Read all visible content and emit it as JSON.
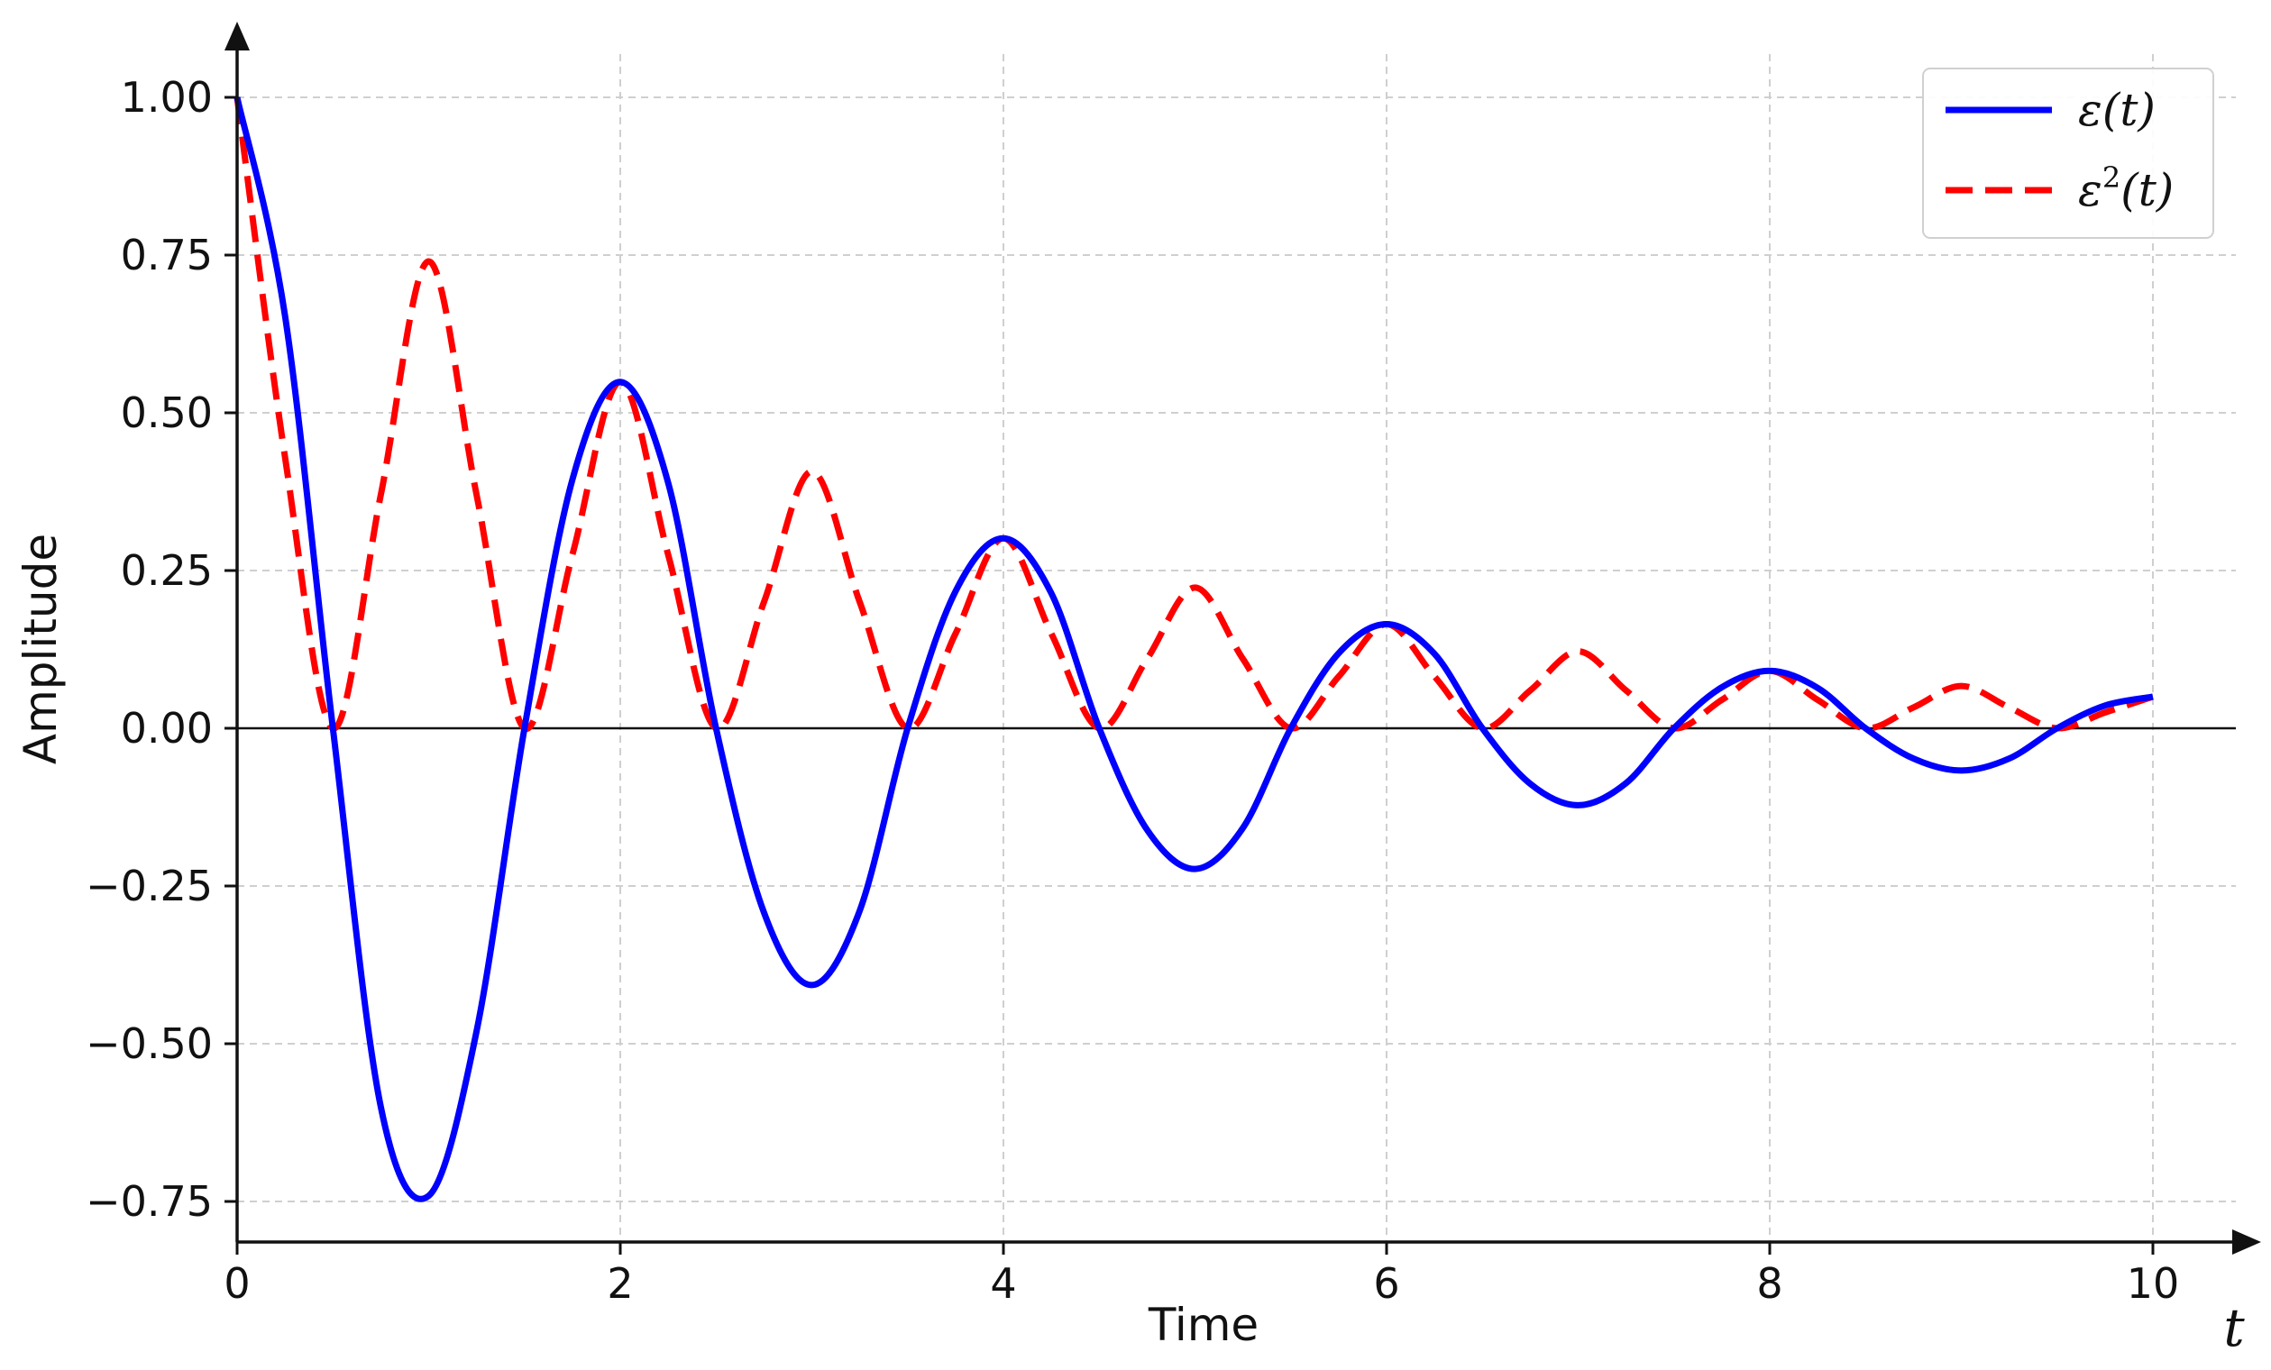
{
  "chart_data": {
    "type": "line",
    "xlabel": "Time",
    "ylabel": "Amplitude",
    "x_axis_symbol": "t",
    "xlim": [
      0,
      10
    ],
    "ylim": [
      -0.75,
      1.0
    ],
    "x_ticks": [
      0,
      2,
      4,
      6,
      8,
      10
    ],
    "x_tick_labels": [
      "0",
      "2",
      "4",
      "6",
      "8",
      "10"
    ],
    "y_ticks": [
      -0.75,
      -0.5,
      -0.25,
      0.0,
      0.25,
      0.5,
      0.75,
      1.0
    ],
    "y_tick_labels": [
      "−0.75",
      "−0.50",
      "−0.25",
      "0.00",
      "0.25",
      "0.50",
      "0.75",
      "1.00"
    ],
    "grid": true,
    "legend_position": "top-right",
    "series": [
      {
        "name": "ε(t)",
        "color": "#0000ff",
        "style": "solid",
        "x": [
          0,
          0.25,
          0.5,
          0.75,
          1.0,
          1.25,
          1.5,
          1.75,
          2.0,
          2.25,
          2.5,
          2.75,
          3.0,
          3.25,
          3.5,
          3.75,
          4.0,
          4.25,
          4.5,
          4.75,
          5.0,
          5.25,
          5.5,
          5.75,
          6.0,
          6.25,
          6.5,
          6.75,
          7.0,
          7.25,
          7.5,
          7.75,
          8.0,
          8.25,
          8.5,
          8.75,
          9.0,
          9.25,
          9.5,
          9.75,
          10.0
        ],
        "y": [
          1.0,
          0.654,
          0.0,
          -0.6,
          -0.741,
          -0.48,
          0.0,
          0.394,
          0.549,
          0.389,
          0.0,
          -0.292,
          -0.407,
          -0.289,
          0.0,
          0.217,
          0.301,
          0.214,
          0.0,
          -0.161,
          -0.223,
          -0.158,
          0.0,
          0.119,
          0.165,
          0.118,
          0.0,
          -0.088,
          -0.122,
          -0.087,
          0.0,
          0.065,
          0.091,
          0.064,
          0.0,
          -0.048,
          -0.067,
          -0.048,
          0.0,
          0.036,
          0.05
        ]
      },
      {
        "name": "ε²(t)",
        "color": "#ff0000",
        "style": "dashed",
        "x": [
          0,
          0.25,
          0.5,
          0.75,
          1.0,
          1.25,
          1.5,
          1.75,
          2.0,
          2.25,
          2.5,
          2.75,
          3.0,
          3.25,
          3.5,
          3.75,
          4.0,
          4.25,
          4.5,
          4.75,
          5.0,
          5.25,
          5.5,
          5.75,
          6.0,
          6.25,
          6.5,
          6.75,
          7.0,
          7.25,
          7.5,
          7.75,
          8.0,
          8.25,
          8.5,
          8.75,
          9.0,
          9.25,
          9.5,
          9.75,
          10.0
        ],
        "y": [
          1.0,
          0.43,
          0.0,
          0.37,
          0.74,
          0.37,
          0.0,
          0.275,
          0.549,
          0.275,
          0.0,
          0.2,
          0.407,
          0.2,
          0.0,
          0.15,
          0.301,
          0.15,
          0.0,
          0.11,
          0.223,
          0.11,
          0.0,
          0.082,
          0.165,
          0.082,
          0.0,
          0.06,
          0.122,
          0.06,
          0.0,
          0.045,
          0.091,
          0.045,
          0.0,
          0.033,
          0.067,
          0.033,
          0.0,
          0.025,
          0.05
        ]
      }
    ]
  }
}
